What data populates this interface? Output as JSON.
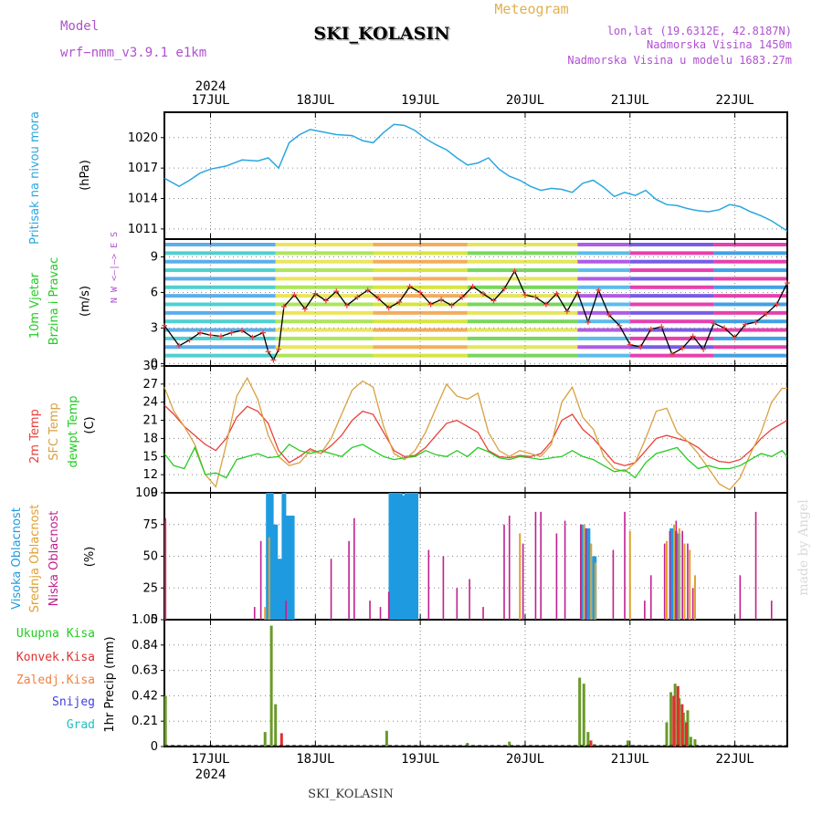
{
  "header": {
    "model_label": "Model",
    "model_name": "wrf−nmm_v3.9.1  e1km",
    "station": "SKI_KOLASIN",
    "meteogram": "Meteogram",
    "lonlat": "lon,lat (19.6312E, 42.8187N)",
    "altitude": "Nadmorska Visina 1450m",
    "model_altitude": "Nadmorska Visina u modelu 1683.27m"
  },
  "footer": {
    "station": "SKI_KOLASIN",
    "watermark": "made by Angel"
  },
  "colors": {
    "pressure": "#2aa7e0",
    "temp": "#e8413a",
    "sfc": "#d9a040",
    "dew": "#22cc22",
    "high": "#1e9be0",
    "mid": "#e0a030",
    "low": "#c0208f",
    "precip_total": "#6a9a2a",
    "precip_conv": "#e03030"
  },
  "chart_data": [
    {
      "type": "line",
      "id": "pressure",
      "ylabel_lines": [
        "Pritisak na nivou mora",
        "(hPa)"
      ],
      "yticks": [
        1011,
        1014,
        1017,
        1020
      ],
      "ylim": [
        1010,
        1022.5
      ],
      "x_range": [
        16.56,
        22.5
      ],
      "date_labels_top": [
        "17JUL",
        "18JUL",
        "19JUL",
        "20JUL",
        "21JUL",
        "22JUL"
      ],
      "year_label": "2024",
      "x": [
        16.56,
        16.7,
        16.8,
        16.9,
        17.0,
        17.15,
        17.3,
        17.45,
        17.55,
        17.65,
        17.75,
        17.85,
        17.95,
        18.05,
        18.2,
        18.35,
        18.45,
        18.55,
        18.65,
        18.75,
        18.85,
        18.95,
        19.05,
        19.15,
        19.25,
        19.35,
        19.45,
        19.55,
        19.65,
        19.75,
        19.85,
        19.95,
        20.05,
        20.15,
        20.25,
        20.35,
        20.45,
        20.55,
        20.65,
        20.75,
        20.85,
        20.95,
        21.05,
        21.15,
        21.25,
        21.35,
        21.45,
        21.55,
        21.65,
        21.75,
        21.85,
        21.95,
        22.05,
        22.15,
        22.25,
        22.35,
        22.5
      ],
      "series": [
        {
          "values": [
            1016.0,
            1015.2,
            1015.8,
            1016.5,
            1016.9,
            1017.2,
            1017.8,
            1017.7,
            1018.0,
            1017.0,
            1019.5,
            1020.3,
            1020.8,
            1020.6,
            1020.3,
            1020.2,
            1019.7,
            1019.5,
            1020.5,
            1021.3,
            1021.2,
            1020.7,
            1019.9,
            1019.3,
            1018.8,
            1018.0,
            1017.3,
            1017.5,
            1018.0,
            1016.9,
            1016.2,
            1015.8,
            1015.2,
            1014.8,
            1015.0,
            1014.9,
            1014.6,
            1015.5,
            1015.8,
            1015.1,
            1014.2,
            1014.6,
            1014.3,
            1014.8,
            1013.9,
            1013.4,
            1013.3,
            1013.0,
            1012.8,
            1012.7,
            1012.9,
            1013.4,
            1013.2,
            1012.7,
            1012.3,
            1011.8,
            1010.8
          ]
        }
      ]
    },
    {
      "type": "line",
      "id": "wind",
      "ylabel_lines": [
        "10m Vjetar",
        "Brzina i Pravac",
        "(m/s)"
      ],
      "compass": "N  W <—|—> E  S",
      "yticks": [
        0,
        3,
        6,
        9
      ],
      "ylim": [
        -0.2,
        10.5
      ],
      "x": [
        16.56,
        16.7,
        16.8,
        16.9,
        17.0,
        17.1,
        17.2,
        17.3,
        17.4,
        17.5,
        17.55,
        17.6,
        17.65,
        17.7,
        17.8,
        17.9,
        18.0,
        18.1,
        18.2,
        18.3,
        18.4,
        18.5,
        18.6,
        18.7,
        18.8,
        18.9,
        19.0,
        19.1,
        19.2,
        19.3,
        19.4,
        19.5,
        19.6,
        19.7,
        19.8,
        19.9,
        20.0,
        20.1,
        20.2,
        20.3,
        20.4,
        20.5,
        20.6,
        20.7,
        20.8,
        20.9,
        21.0,
        21.1,
        21.2,
        21.3,
        21.4,
        21.5,
        21.6,
        21.7,
        21.8,
        21.9,
        22.0,
        22.1,
        22.2,
        22.3,
        22.4,
        22.5
      ],
      "series": [
        {
          "name": "Brzina",
          "values": [
            3.2,
            1.5,
            2.0,
            2.6,
            2.4,
            2.3,
            2.6,
            2.8,
            2.2,
            2.6,
            1.0,
            0.3,
            1.2,
            4.8,
            5.8,
            4.6,
            5.9,
            5.3,
            6.1,
            4.9,
            5.6,
            6.2,
            5.5,
            4.7,
            5.2,
            6.5,
            6.0,
            5.0,
            5.4,
            4.9,
            5.6,
            6.5,
            5.9,
            5.3,
            6.3,
            7.8,
            5.8,
            5.6,
            5.0,
            5.9,
            4.4,
            6.0,
            3.5,
            6.2,
            4.1,
            3.2,
            1.6,
            1.4,
            2.9,
            3.1,
            0.8,
            1.3,
            2.3,
            1.2,
            3.4,
            3.0,
            2.2,
            3.3,
            3.5,
            4.2,
            5.0,
            6.8
          ]
        }
      ]
    },
    {
      "type": "line",
      "id": "temperature",
      "ylabel_lines": [
        "2m Temp",
        "SFC Temp",
        "dewpt Temp",
        "(C)"
      ],
      "yticks": [
        9,
        12,
        15,
        18,
        21,
        24,
        27,
        30
      ],
      "ylim": [
        9,
        30
      ],
      "x": [
        16.56,
        16.65,
        16.75,
        16.85,
        16.95,
        17.05,
        17.15,
        17.25,
        17.35,
        17.45,
        17.55,
        17.65,
        17.75,
        17.85,
        17.95,
        18.05,
        18.15,
        18.25,
        18.35,
        18.45,
        18.55,
        18.65,
        18.75,
        18.85,
        18.95,
        19.05,
        19.15,
        19.25,
        19.35,
        19.45,
        19.55,
        19.65,
        19.75,
        19.85,
        19.95,
        20.05,
        20.15,
        20.25,
        20.35,
        20.45,
        20.55,
        20.65,
        20.75,
        20.85,
        20.95,
        21.05,
        21.15,
        21.25,
        21.35,
        21.45,
        21.55,
        21.65,
        21.75,
        21.85,
        21.95,
        22.05,
        22.15,
        22.25,
        22.35,
        22.45,
        22.5
      ],
      "series": [
        {
          "name": "2m Temp",
          "values": [
            23.5,
            22.0,
            20.0,
            18.5,
            17.0,
            16.0,
            18.0,
            21.5,
            23.3,
            22.5,
            20.5,
            16.0,
            14.0,
            15.0,
            16.3,
            15.5,
            16.8,
            18.5,
            21.0,
            22.5,
            22.0,
            19.0,
            16.0,
            15.0,
            15.2,
            16.5,
            18.5,
            20.5,
            21.0,
            20.0,
            19.0,
            16.0,
            15.0,
            14.8,
            15.2,
            15.0,
            15.5,
            17.5,
            21.0,
            22.0,
            19.5,
            18.0,
            16.0,
            14.0,
            13.5,
            14.0,
            16.0,
            18.0,
            18.5,
            18.0,
            17.5,
            16.5,
            15.0,
            14.2,
            14.0,
            14.5,
            16.0,
            18.0,
            19.5,
            20.5,
            21.0
          ]
        },
        {
          "name": "SFC Temp",
          "values": [
            26.5,
            22.5,
            20.0,
            17.0,
            12.0,
            10.0,
            17.0,
            25.0,
            28.0,
            24.5,
            18.5,
            15.0,
            13.5,
            14.0,
            16.0,
            15.5,
            18.0,
            22.0,
            26.0,
            27.5,
            26.5,
            20.0,
            15.5,
            14.5,
            16.0,
            19.0,
            23.0,
            27.0,
            25.0,
            24.5,
            25.5,
            19.0,
            16.0,
            15.0,
            16.0,
            15.5,
            15.0,
            17.0,
            24.0,
            26.5,
            21.5,
            19.5,
            15.0,
            13.0,
            12.5,
            14.0,
            18.0,
            22.5,
            23.0,
            19.0,
            17.5,
            15.5,
            13.0,
            10.5,
            9.5,
            11.5,
            15.5,
            19.0,
            24.0,
            26.3,
            26.3
          ]
        },
        {
          "name": "dewpt Temp",
          "values": [
            15.5,
            13.5,
            13.0,
            16.5,
            12.0,
            12.3,
            11.5,
            14.5,
            15.0,
            15.5,
            14.8,
            15.0,
            17.0,
            16.0,
            15.5,
            16.0,
            15.5,
            15.0,
            16.5,
            17.0,
            16.0,
            15.0,
            14.5,
            14.8,
            15.0,
            16.0,
            15.3,
            15.0,
            16.0,
            15.0,
            16.5,
            15.8,
            14.8,
            14.5,
            15.0,
            14.8,
            14.5,
            14.8,
            15.0,
            16.0,
            15.0,
            14.5,
            13.5,
            12.5,
            12.8,
            11.5,
            14.0,
            15.5,
            16.0,
            16.5,
            14.5,
            13.0,
            13.5,
            13.0,
            13.0,
            13.5,
            14.5,
            15.5,
            15.0,
            16.0,
            15.0
          ]
        }
      ]
    },
    {
      "type": "bar",
      "id": "cloud",
      "ylabel_lines": [
        "Visoka Oblacnost",
        "Srednja Oblacnost",
        "Niska Oblacnost",
        "(%)"
      ],
      "yticks": [
        0,
        25,
        50,
        75,
        100
      ],
      "ylim": [
        0,
        100
      ],
      "series": [
        {
          "name": "Visoka Oblacnost",
          "points": [
            [
              17.55,
              100
            ],
            [
              17.58,
              100
            ],
            [
              17.62,
              75
            ],
            [
              17.66,
              48
            ],
            [
              17.7,
              100
            ],
            [
              17.74,
              82
            ],
            [
              17.78,
              82
            ],
            [
              18.72,
              100
            ],
            [
              18.75,
              100
            ],
            [
              18.78,
              100
            ],
            [
              18.81,
              100
            ],
            [
              18.84,
              98
            ],
            [
              18.87,
              100
            ],
            [
              18.9,
              100
            ],
            [
              18.93,
              100
            ],
            [
              18.96,
              100
            ],
            [
              20.55,
              75
            ],
            [
              20.6,
              72
            ],
            [
              20.66,
              50
            ],
            [
              21.4,
              72
            ],
            [
              21.43,
              70
            ],
            [
              21.46,
              68
            ]
          ]
        },
        {
          "name": "Srednja Oblacnost",
          "points": [
            [
              16.57,
              78
            ],
            [
              17.52,
              10
            ],
            [
              17.56,
              65
            ],
            [
              19.95,
              68
            ],
            [
              20.56,
              75
            ],
            [
              20.63,
              60
            ],
            [
              20.67,
              45
            ],
            [
              21.0,
              70
            ],
            [
              21.35,
              62
            ],
            [
              21.42,
              75
            ],
            [
              21.47,
              72
            ],
            [
              21.52,
              60
            ],
            [
              21.57,
              55
            ],
            [
              21.62,
              35
            ]
          ]
        },
        {
          "name": "Niska Oblacnost",
          "points": [
            [
              16.57,
              80
            ],
            [
              17.42,
              10
            ],
            [
              17.48,
              62
            ],
            [
              17.72,
              15
            ],
            [
              18.15,
              48
            ],
            [
              18.32,
              62
            ],
            [
              18.37,
              80
            ],
            [
              18.52,
              15
            ],
            [
              18.62,
              10
            ],
            [
              18.7,
              22
            ],
            [
              19.08,
              55
            ],
            [
              19.22,
              50
            ],
            [
              19.35,
              25
            ],
            [
              19.47,
              32
            ],
            [
              19.6,
              10
            ],
            [
              19.8,
              75
            ],
            [
              19.85,
              82
            ],
            [
              19.98,
              60
            ],
            [
              20.1,
              85
            ],
            [
              20.15,
              85
            ],
            [
              20.3,
              68
            ],
            [
              20.38,
              78
            ],
            [
              20.53,
              75
            ],
            [
              20.58,
              72
            ],
            [
              20.84,
              55
            ],
            [
              20.95,
              85
            ],
            [
              21.14,
              15
            ],
            [
              21.2,
              35
            ],
            [
              21.33,
              60
            ],
            [
              21.38,
              70
            ],
            [
              21.44,
              78
            ],
            [
              21.5,
              70
            ],
            [
              21.55,
              60
            ],
            [
              21.6,
              25
            ],
            [
              22.05,
              35
            ],
            [
              22.2,
              85
            ],
            [
              22.35,
              15
            ]
          ]
        }
      ]
    },
    {
      "type": "bar",
      "id": "precip",
      "ylabel_lines": [
        "1hr Precip (mm)"
      ],
      "legend": [
        "Ukupna  Kisa",
        "Konvek.Kisa",
        "Zaledj.Kisa",
        "Snijeg",
        "Grad"
      ],
      "yticks": [
        0,
        0.21,
        0.42,
        0.63,
        0.84,
        1.05
      ],
      "ylim": [
        0,
        1.05
      ],
      "date_labels_bottom": [
        "17JUL",
        "18JUL",
        "19JUL",
        "20JUL",
        "21JUL",
        "22JUL"
      ],
      "year_label": "2024",
      "series": [
        {
          "name": "Ukupna  Kisa",
          "points": [
            [
              16.57,
              0.42
            ],
            [
              17.52,
              0.12
            ],
            [
              17.58,
              1.0
            ],
            [
              17.62,
              0.35
            ],
            [
              18.68,
              0.13
            ],
            [
              19.45,
              0.03
            ],
            [
              19.85,
              0.04
            ],
            [
              20.52,
              0.57
            ],
            [
              20.56,
              0.52
            ],
            [
              20.6,
              0.12
            ],
            [
              20.66,
              0.02
            ],
            [
              20.98,
              0.05
            ],
            [
              21.35,
              0.2
            ],
            [
              21.39,
              0.45
            ],
            [
              21.43,
              0.52
            ],
            [
              21.47,
              0.4
            ],
            [
              21.51,
              0.28
            ],
            [
              21.55,
              0.3
            ],
            [
              21.58,
              0.08
            ],
            [
              21.62,
              0.06
            ]
          ]
        },
        {
          "name": "Konvek.Kisa",
          "points": [
            [
              17.66,
              0.11
            ],
            [
              20.61,
              0.05
            ],
            [
              21.4,
              0.42
            ],
            [
              21.44,
              0.5
            ],
            [
              21.48,
              0.35
            ],
            [
              21.52,
              0.2
            ]
          ]
        }
      ]
    }
  ]
}
